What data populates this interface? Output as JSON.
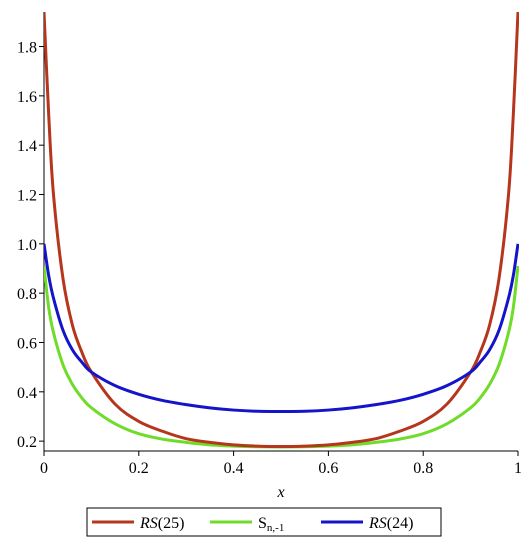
{
  "chart_data": {
    "type": "line",
    "xlabel": "x",
    "ylabel": "",
    "xlim": [
      0,
      1
    ],
    "ylim": [
      0.16,
      1.94
    ],
    "xticks": [
      {
        "value": 0,
        "label": "0"
      },
      {
        "value": 0.2,
        "label": "0.2"
      },
      {
        "value": 0.4,
        "label": "0.4"
      },
      {
        "value": 0.6,
        "label": "0.6"
      },
      {
        "value": 0.8,
        "label": "0.8"
      },
      {
        "value": 1,
        "label": "1"
      }
    ],
    "yticks": [
      {
        "value": 0.2,
        "label": "0.2"
      },
      {
        "value": 0.4,
        "label": "0.4"
      },
      {
        "value": 0.6,
        "label": "0.6"
      },
      {
        "value": 0.8,
        "label": "0.8"
      },
      {
        "value": 1.0,
        "label": "1.0"
      },
      {
        "value": 1.2,
        "label": "1.2"
      },
      {
        "value": 1.4,
        "label": "1.4"
      },
      {
        "value": 1.6,
        "label": "1.6"
      },
      {
        "value": 1.8,
        "label": "1.8"
      }
    ],
    "grid": false,
    "legend_position": "bottom",
    "x": [
      0,
      0.01,
      0.02,
      0.04,
      0.06,
      0.08,
      0.1,
      0.15,
      0.2,
      0.25,
      0.3,
      0.35,
      0.4,
      0.45,
      0.5,
      0.55,
      0.6,
      0.65,
      0.7,
      0.75,
      0.8,
      0.85,
      0.9,
      0.92,
      0.94,
      0.96,
      0.98,
      0.99,
      1
    ],
    "series": [
      {
        "name_parts": [
          "RS",
          "(25)"
        ],
        "color": "#b5361c",
        "values": [
          1.94,
          1.52,
          1.2,
          0.86,
          0.67,
          0.56,
          0.48,
          0.35,
          0.28,
          0.24,
          0.21,
          0.195,
          0.185,
          0.18,
          0.178,
          0.18,
          0.185,
          0.195,
          0.21,
          0.24,
          0.28,
          0.35,
          0.48,
          0.56,
          0.67,
          0.86,
          1.2,
          1.52,
          1.94
        ]
      },
      {
        "name_parts": [
          "S",
          "n,-1"
        ],
        "color": "#6fdc2a",
        "values": [
          0.91,
          0.74,
          0.64,
          0.51,
          0.43,
          0.375,
          0.335,
          0.27,
          0.23,
          0.208,
          0.195,
          0.185,
          0.18,
          0.177,
          0.176,
          0.177,
          0.18,
          0.185,
          0.195,
          0.208,
          0.23,
          0.27,
          0.335,
          0.375,
          0.43,
          0.51,
          0.64,
          0.74,
          0.91
        ]
      },
      {
        "name_parts": [
          "RS",
          "(24)"
        ],
        "color": "#1414c8",
        "values": [
          1.0,
          0.87,
          0.78,
          0.65,
          0.57,
          0.52,
          0.48,
          0.425,
          0.39,
          0.365,
          0.348,
          0.335,
          0.326,
          0.321,
          0.32,
          0.321,
          0.326,
          0.335,
          0.348,
          0.365,
          0.39,
          0.425,
          0.48,
          0.52,
          0.57,
          0.65,
          0.78,
          0.87,
          1.0
        ]
      }
    ]
  }
}
